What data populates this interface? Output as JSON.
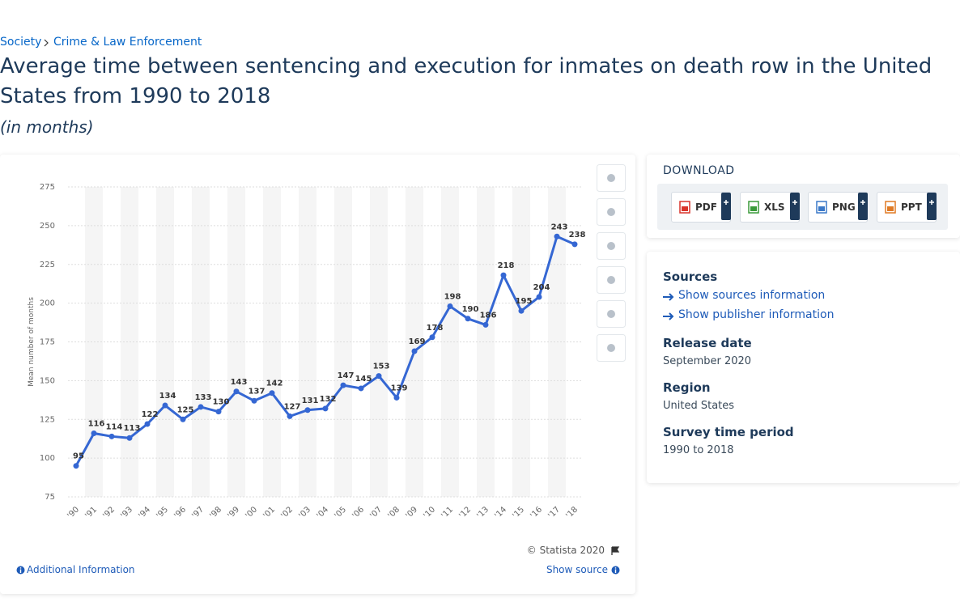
{
  "breadcrumb": [
    "Society",
    "Crime & Law Enforcement"
  ],
  "title": "Average time between sentencing and execution for inmates on death row in the United States from 1990 to 2018",
  "subtitle": "(in months)",
  "chart_data": {
    "type": "line",
    "y_label": "Mean number of months",
    "categories": [
      "'90",
      "'91",
      "'92",
      "'93",
      "'94",
      "'95",
      "'96",
      "'97",
      "'98",
      "'99",
      "'00",
      "'01",
      "'02",
      "'03",
      "'04",
      "'05",
      "'06",
      "'07",
      "'08",
      "'09",
      "'10",
      "'11",
      "'12",
      "'13",
      "'14",
      "'15",
      "'16",
      "'17",
      "'18"
    ],
    "series": [
      {
        "name": "Mean number of months",
        "color": "#3567d3",
        "values": [
          95,
          116,
          114,
          113,
          122,
          134,
          125,
          133,
          130,
          143,
          137,
          142,
          127,
          131,
          132,
          147,
          145,
          153,
          139,
          169,
          178,
          198,
          190,
          186,
          218,
          195,
          204,
          243,
          238
        ]
      }
    ],
    "ylim": [
      75,
      275
    ],
    "yticks": [
      75,
      100,
      125,
      150,
      175,
      200,
      225,
      250,
      275
    ],
    "grid": true
  },
  "chart_footer": {
    "copyright": "© Statista 2020",
    "additional": "Additional Information",
    "show_source": "Show source"
  },
  "download": {
    "title": "DOWNLOAD",
    "formats": [
      "PDF",
      "XLS",
      "PNG",
      "PPT"
    ]
  },
  "sidebar": {
    "sources_title": "Sources",
    "links": [
      "Show sources information",
      "Show publisher information"
    ],
    "details": [
      {
        "label": "Release date",
        "value": "September 2020"
      },
      {
        "label": "Region",
        "value": "United States"
      },
      {
        "label": "Survey time period",
        "value": "1990 to 2018"
      }
    ]
  }
}
